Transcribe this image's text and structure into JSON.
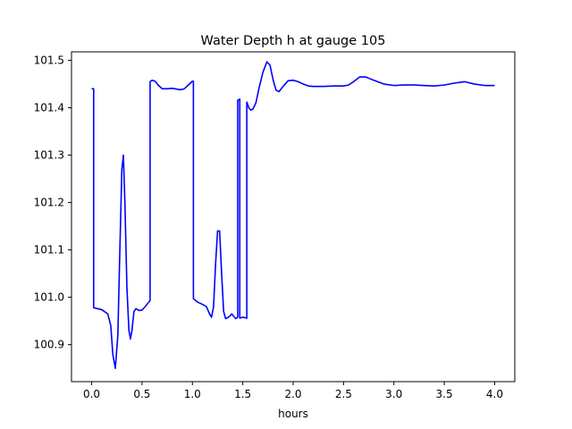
{
  "chart_data": {
    "type": "line",
    "title": "Water Depth h at gauge 105",
    "xlabel": "hours",
    "ylabel": "",
    "xlim": [
      -0.2,
      4.2
    ],
    "ylim": [
      100.822,
      101.518
    ],
    "xticks": [
      0.0,
      0.5,
      1.0,
      1.5,
      2.0,
      2.5,
      3.0,
      3.5,
      4.0
    ],
    "xtick_labels": [
      "0.0",
      "0.5",
      "1.0",
      "1.5",
      "2.0",
      "2.5",
      "3.0",
      "3.5",
      "4.0"
    ],
    "yticks": [
      100.9,
      101.0,
      101.1,
      101.2,
      101.3,
      101.4,
      101.5
    ],
    "ytick_labels": [
      "100.9",
      "101.0",
      "101.1",
      "101.2",
      "101.3",
      "101.4",
      "101.5"
    ],
    "grid": false,
    "legend": "none",
    "series": [
      {
        "color": "#0000ff",
        "x": [
          0.0,
          0.02,
          0.02,
          0.1,
          0.16,
          0.19,
          0.21,
          0.235,
          0.26,
          0.28,
          0.3,
          0.315,
          0.33,
          0.35,
          0.37,
          0.385,
          0.4,
          0.42,
          0.44,
          0.47,
          0.5,
          0.53,
          0.56,
          0.58,
          0.58,
          0.6,
          0.63,
          0.66,
          0.7,
          0.75,
          0.8,
          0.88,
          0.92,
          0.96,
          1.0,
          1.01,
          1.01,
          1.05,
          1.1,
          1.14,
          1.17,
          1.19,
          1.21,
          1.23,
          1.25,
          1.27,
          1.29,
          1.31,
          1.33,
          1.35,
          1.37,
          1.39,
          1.41,
          1.43,
          1.45,
          1.45,
          1.47,
          1.47,
          1.5,
          1.54,
          1.54,
          1.56,
          1.58,
          1.6,
          1.63,
          1.66,
          1.7,
          1.74,
          1.77,
          1.8,
          1.83,
          1.86,
          1.9,
          1.95,
          2.0,
          2.05,
          2.1,
          2.15,
          2.2,
          2.3,
          2.4,
          2.5,
          2.55,
          2.6,
          2.66,
          2.72,
          2.8,
          2.9,
          3.0,
          3.1,
          3.2,
          3.3,
          3.4,
          3.5,
          3.6,
          3.7,
          3.8,
          3.9,
          4.0
        ],
        "y": [
          101.44,
          101.44,
          100.978,
          100.974,
          100.965,
          100.94,
          100.88,
          100.85,
          100.92,
          101.1,
          101.27,
          101.3,
          101.2,
          101.02,
          100.93,
          100.912,
          100.93,
          100.97,
          100.976,
          100.972,
          100.973,
          100.98,
          100.988,
          100.993,
          101.455,
          101.458,
          101.456,
          101.448,
          101.44,
          101.44,
          101.441,
          101.438,
          101.44,
          101.448,
          101.456,
          101.456,
          100.997,
          100.99,
          100.985,
          100.98,
          100.965,
          100.958,
          100.98,
          101.07,
          101.14,
          101.14,
          101.05,
          100.97,
          100.955,
          100.957,
          100.96,
          100.965,
          100.96,
          100.955,
          100.958,
          101.416,
          101.418,
          100.956,
          100.958,
          100.956,
          101.412,
          101.4,
          101.395,
          101.397,
          101.41,
          101.44,
          101.475,
          101.497,
          101.49,
          101.46,
          101.437,
          101.434,
          101.445,
          101.457,
          101.458,
          101.455,
          101.45,
          101.446,
          101.445,
          101.445,
          101.446,
          101.446,
          101.448,
          101.455,
          101.465,
          101.465,
          101.458,
          101.45,
          101.447,
          101.448,
          101.448,
          101.447,
          101.446,
          101.448,
          101.452,
          101.455,
          101.45,
          101.447,
          101.447
        ]
      }
    ]
  }
}
